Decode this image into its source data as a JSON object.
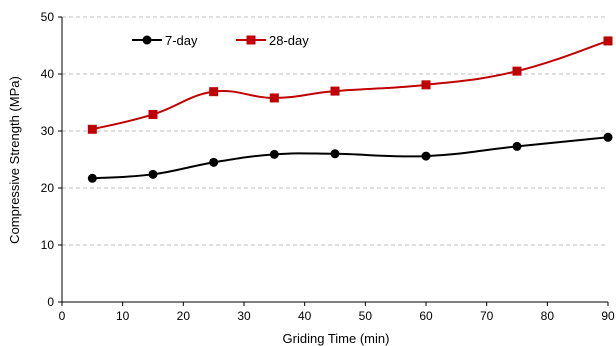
{
  "chart_data": {
    "type": "line",
    "xlabel": "Griding Time (min)",
    "ylabel": "Compressive Strength (MPa)",
    "xlim": [
      0,
      90
    ],
    "ylim": [
      0,
      50
    ],
    "x_ticks": [
      0,
      10,
      20,
      30,
      40,
      50,
      60,
      70,
      80,
      90
    ],
    "y_ticks": [
      0,
      10,
      20,
      30,
      40,
      50
    ],
    "grid": "horizontal-dashed",
    "legend_position": "top-left",
    "x": [
      5,
      15,
      25,
      35,
      45,
      60,
      75,
      90
    ],
    "series": [
      {
        "name": "7-day",
        "values": [
          21.7,
          22.4,
          24.5,
          25.9,
          26.0,
          25.6,
          27.3,
          28.9
        ],
        "color": "#000000",
        "marker": "circle"
      },
      {
        "name": "28-day",
        "values": [
          30.3,
          32.9,
          36.9,
          35.8,
          37.0,
          38.1,
          40.5,
          45.8
        ],
        "color": "#c00000",
        "marker": "square"
      }
    ]
  }
}
